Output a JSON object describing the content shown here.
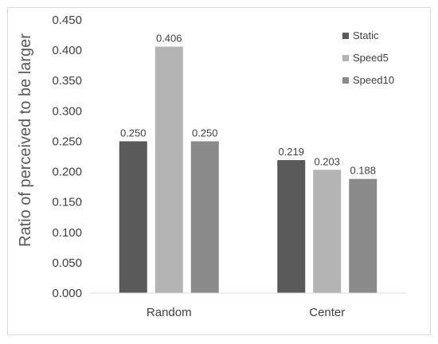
{
  "chart_data": {
    "type": "bar",
    "title": "",
    "xlabel": "",
    "ylabel": "Ratio of perceived to be larger",
    "categories": [
      "Random",
      "Center"
    ],
    "series": [
      {
        "name": "Static",
        "color": "#595959",
        "values": [
          0.25,
          0.219
        ],
        "labels": [
          "0.250",
          "0.219"
        ]
      },
      {
        "name": "Speed5",
        "color": "#b4b4b4",
        "values": [
          0.406,
          0.203
        ],
        "labels": [
          "0.406",
          "0.203"
        ]
      },
      {
        "name": "Speed10",
        "color": "#8a8a8a",
        "values": [
          0.25,
          0.188
        ],
        "labels": [
          "0.250",
          "0.188"
        ]
      }
    ],
    "ylim": [
      0,
      0.45
    ],
    "yticks": [
      "0.000",
      "0.050",
      "0.100",
      "0.150",
      "0.200",
      "0.250",
      "0.300",
      "0.350",
      "0.400",
      "0.450"
    ],
    "grid": false,
    "legend": "top-right"
  }
}
